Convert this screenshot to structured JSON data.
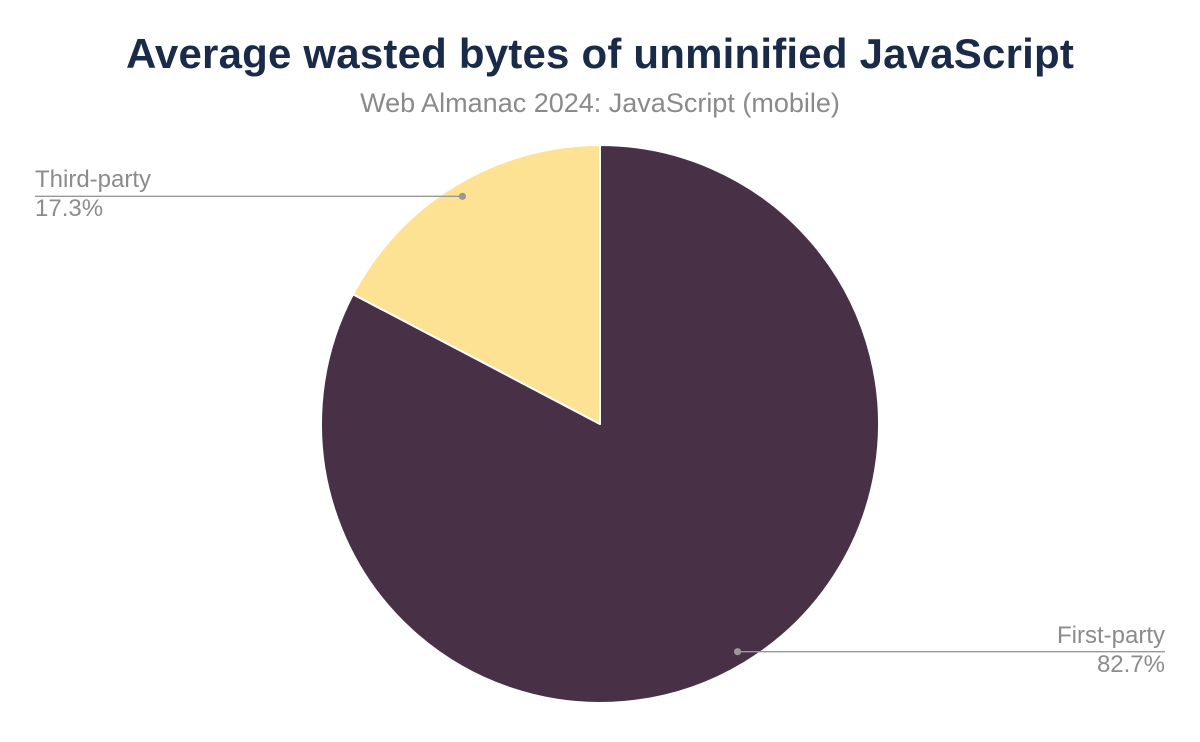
{
  "chart_data": {
    "type": "pie",
    "title": "Average wasted bytes of unminified JavaScript",
    "subtitle": "Web Almanac 2024: JavaScript (mobile)",
    "unit": "%",
    "direction": "clockwise",
    "start_angle_deg": 0,
    "legend_position": "none",
    "data_labels": "outside-with-connector-dots",
    "slices": [
      {
        "name": "First-party",
        "value": 82.7,
        "label": "82.7%",
        "color": "#483146",
        "label_side": "right"
      },
      {
        "name": "Third-party",
        "value": 17.3,
        "label": "17.3%",
        "color": "#fde293",
        "label_side": "left"
      }
    ],
    "colors": {
      "title_text": "#1a2b49",
      "subtitle_text": "#8a8a8a",
      "label_text": "#8c8c8c",
      "connector": "#999999",
      "slice_border": "#ffffff",
      "background": "#ffffff"
    }
  }
}
